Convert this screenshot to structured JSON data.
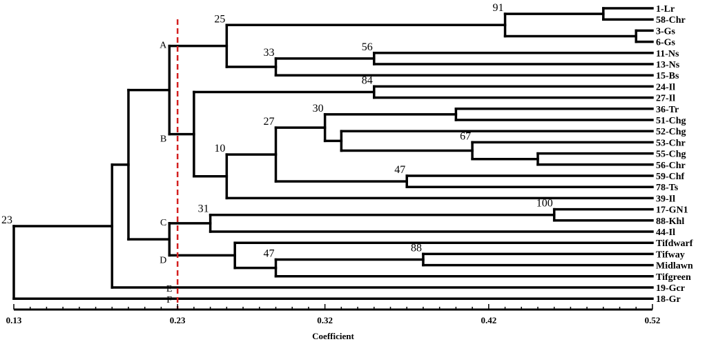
{
  "axis": {
    "title": "Coefficient",
    "min": 0.13,
    "max": 0.52,
    "major_ticks": [
      "0.13",
      "0.23",
      "0.32",
      "0.42",
      "0.52"
    ],
    "minor_step": 0.01
  },
  "cutoff_value": 0.23,
  "cutoff_color": "#d42020",
  "leaves": [
    "1-Lr",
    "58-Chr",
    "3-Gs",
    "6-Gs",
    "11-Ns",
    "13-Ns",
    "15-Bs",
    "24-Il",
    "27-Il",
    "36-Tr",
    "51-Chg",
    "52-Chg",
    "53-Chr",
    "55-Chg",
    "56-Chr",
    "59-Chf",
    "78-Ts",
    "39-Il",
    "17-GN1",
    "88-Khl",
    "44-Il",
    "Tifdwarf",
    "Tifway",
    "Midlawn",
    "Tifgreen",
    "19-Gcr",
    "18-Gr"
  ],
  "tree": [
    {
      "id": "n1",
      "children": [
        "L0",
        "L1"
      ],
      "height": 0.49
    },
    {
      "id": "n2",
      "children": [
        "L2",
        "L3"
      ],
      "height": 0.51
    },
    {
      "id": "n3",
      "children": [
        "n1",
        "n2"
      ],
      "height": 0.43,
      "support": "91"
    },
    {
      "id": "n4",
      "children": [
        "L4",
        "L5"
      ],
      "height": 0.35,
      "support": "56"
    },
    {
      "id": "n5",
      "children": [
        "n4",
        "L6"
      ],
      "height": 0.29,
      "support": "33"
    },
    {
      "id": "n6",
      "children": [
        "n3",
        "n5"
      ],
      "height": 0.26,
      "support": "25"
    },
    {
      "id": "n7",
      "children": [
        "L7",
        "L8"
      ],
      "height": 0.35,
      "support": "84"
    },
    {
      "id": "n8",
      "children": [
        "L9",
        "L10"
      ],
      "height": 0.4
    },
    {
      "id": "n9",
      "children": [
        "L13",
        "L14"
      ],
      "height": 0.45
    },
    {
      "id": "n10",
      "children": [
        "L12",
        "n9"
      ],
      "height": 0.41,
      "support": "67"
    },
    {
      "id": "n11",
      "children": [
        "L11",
        "n10"
      ],
      "height": 0.33
    },
    {
      "id": "n12",
      "children": [
        "n8",
        "n11"
      ],
      "height": 0.32,
      "support": "30"
    },
    {
      "id": "n13",
      "children": [
        "L15",
        "L16"
      ],
      "height": 0.37,
      "support": "47"
    },
    {
      "id": "n14",
      "children": [
        "n12",
        "n13"
      ],
      "height": 0.29,
      "support": "27"
    },
    {
      "id": "n15",
      "children": [
        "n14",
        "L17"
      ],
      "height": 0.26,
      "support": "10"
    },
    {
      "id": "n16",
      "children": [
        "n7",
        "n15"
      ],
      "height": 0.24
    },
    {
      "id": "n17",
      "children": [
        "n6",
        "n16"
      ],
      "height": 0.225,
      "group_upper": "A",
      "group_lower": "B"
    },
    {
      "id": "n18",
      "children": [
        "L18",
        "L19"
      ],
      "height": 0.46,
      "support": "100"
    },
    {
      "id": "n19",
      "children": [
        "n18",
        "L20"
      ],
      "height": 0.25,
      "support": "31"
    },
    {
      "id": "n20",
      "children": [
        "L22",
        "L23"
      ],
      "height": 0.38,
      "support": "88"
    },
    {
      "id": "n21",
      "children": [
        "n20",
        "L24"
      ],
      "height": 0.29,
      "support": "47"
    },
    {
      "id": "n22",
      "children": [
        "L21",
        "n21"
      ],
      "height": 0.265
    },
    {
      "id": "n23",
      "children": [
        "n19",
        "n22"
      ],
      "height": 0.225,
      "group_upper": "C",
      "group_lower": "D"
    },
    {
      "id": "n24",
      "children": [
        "n17",
        "n23"
      ],
      "height": 0.2
    },
    {
      "id": "n25",
      "children": [
        "n24",
        "L25"
      ],
      "height": 0.19
    },
    {
      "id": "n26",
      "children": [
        "n25",
        "L26"
      ],
      "height": 0.13,
      "support": "23"
    }
  ],
  "extra_group_labels": [
    {
      "text": "E",
      "leaf": "L25"
    },
    {
      "text": "F",
      "leaf": "L26"
    }
  ]
}
